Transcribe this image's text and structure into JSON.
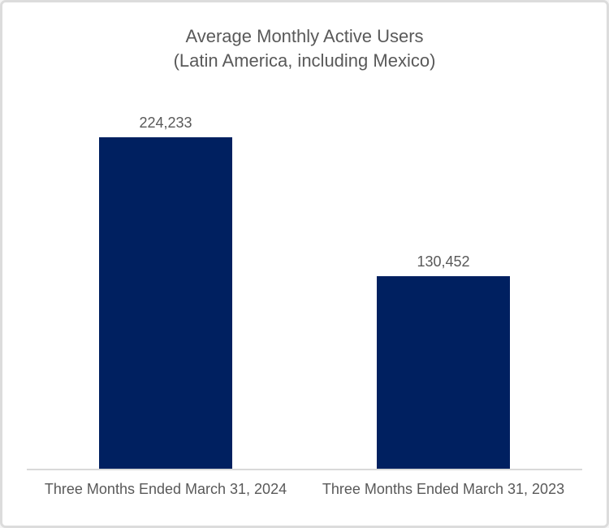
{
  "chart_data": {
    "type": "bar",
    "title": "Average Monthly Active Users (Latin America, including Mexico)",
    "title_lines": {
      "line1": "Average Monthly Active Users",
      "line2": "(Latin America, including Mexico)"
    },
    "categories": [
      "Three Months Ended March 31, 2024",
      "Three Months Ended March 31, 2023"
    ],
    "values": [
      224233,
      130452
    ],
    "value_labels": [
      "224,233",
      "130,452"
    ],
    "xlabel": "",
    "ylabel": "",
    "ylim": [
      0,
      250000
    ],
    "grid": false,
    "legend": false,
    "bar_color": "#002060",
    "text_color": "#595959",
    "axis_line_color": "#d9d9d9",
    "frame_border_color": "#dcdcdc"
  }
}
